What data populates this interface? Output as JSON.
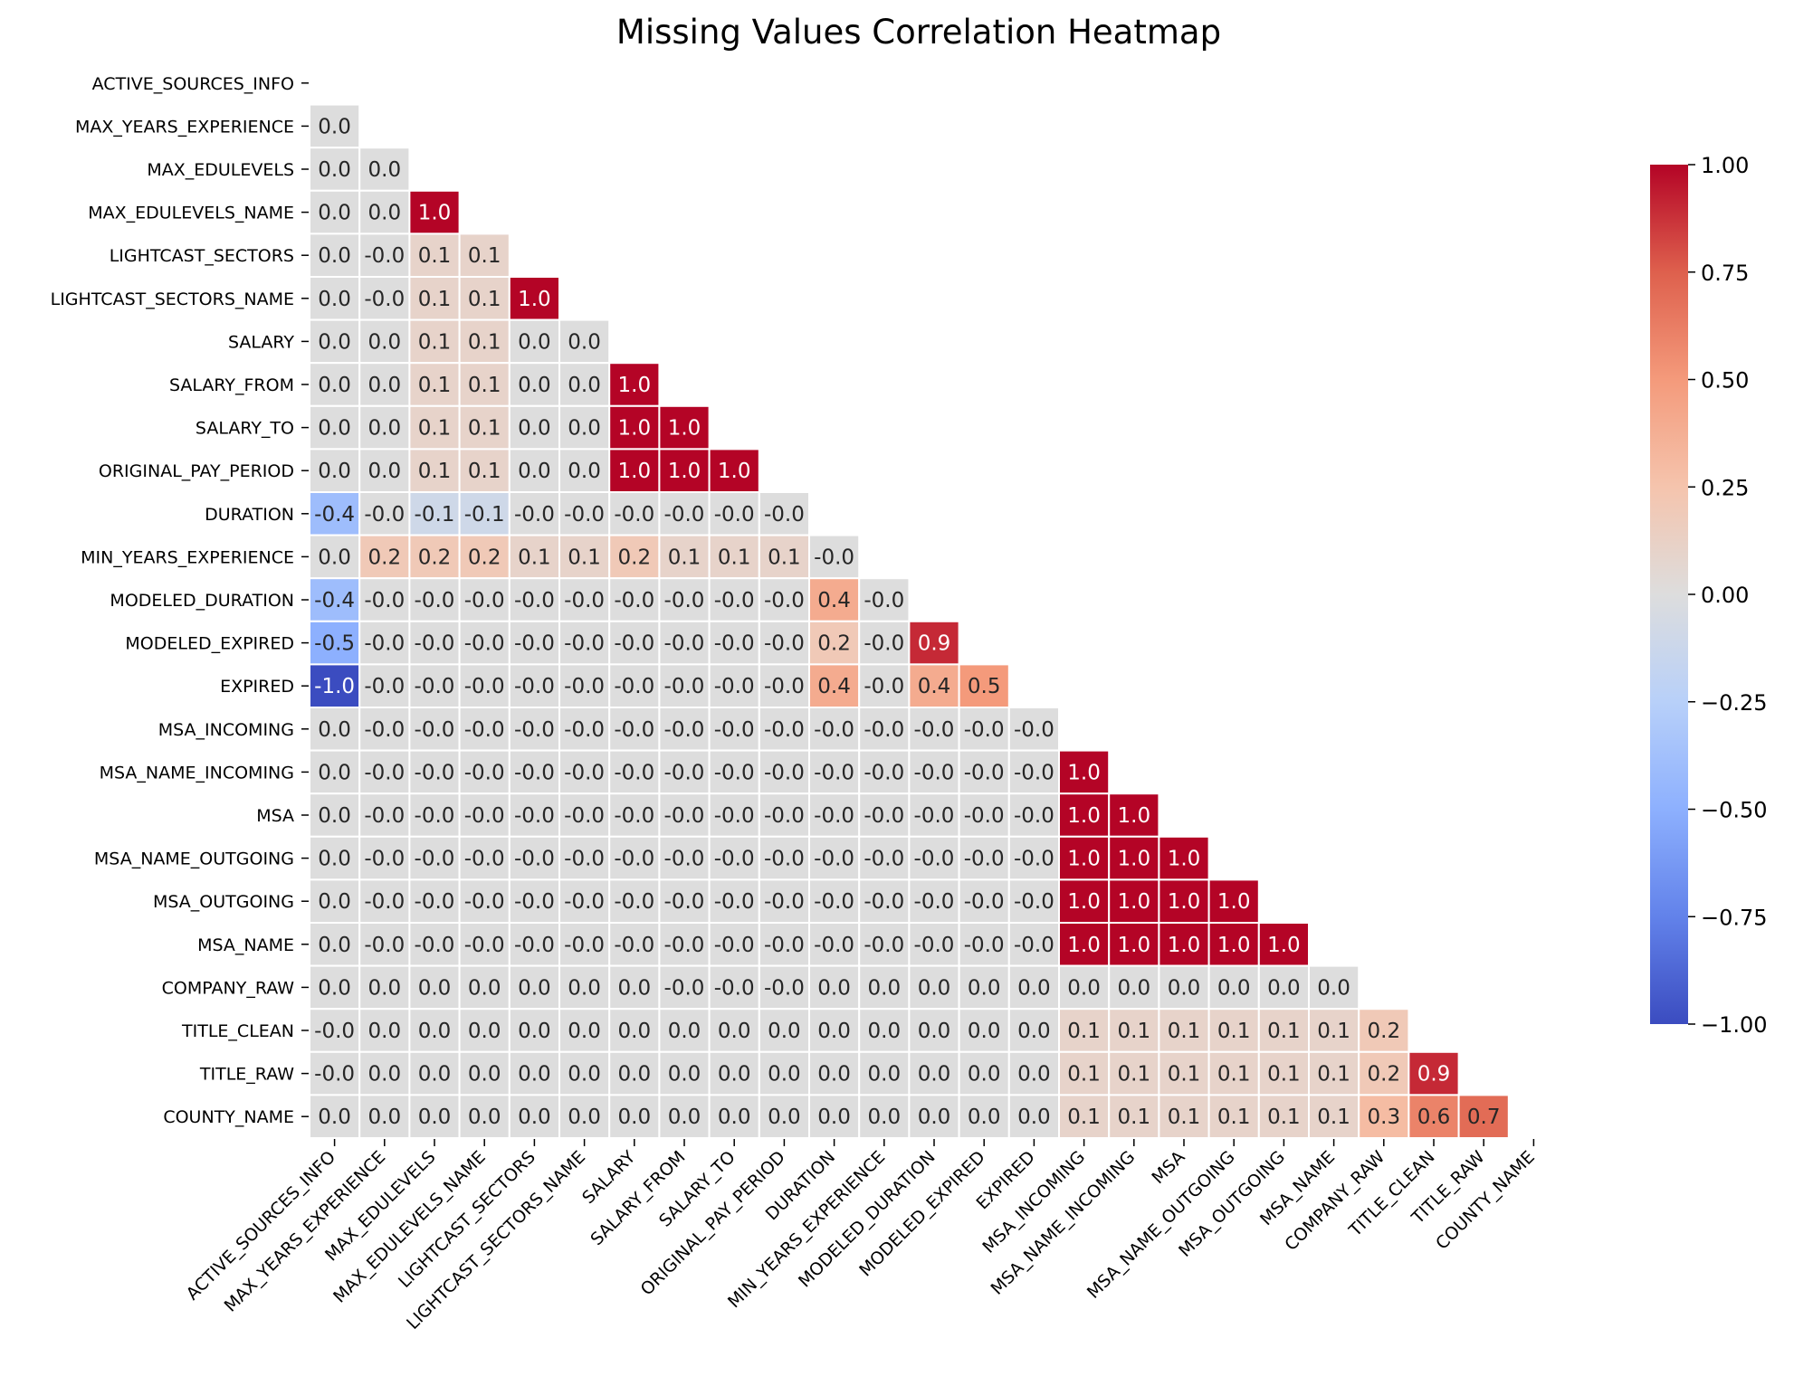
{
  "chart_data": {
    "type": "heatmap",
    "title": "Missing Values Correlation Heatmap",
    "xlabel": "",
    "ylabel": "",
    "mask": "upper-triangle-including-diagonal",
    "colormap": "coolwarm",
    "value_range": [
      -1.0,
      1.0
    ],
    "grid_lines": "white",
    "labels": [
      "ACTIVE_SOURCES_INFO",
      "MAX_YEARS_EXPERIENCE",
      "MAX_EDULEVELS",
      "MAX_EDULEVELS_NAME",
      "LIGHTCAST_SECTORS",
      "LIGHTCAST_SECTORS_NAME",
      "SALARY",
      "SALARY_FROM",
      "SALARY_TO",
      "ORIGINAL_PAY_PERIOD",
      "DURATION",
      "MIN_YEARS_EXPERIENCE",
      "MODELED_DURATION",
      "MODELED_EXPIRED",
      "EXPIRED",
      "MSA_INCOMING",
      "MSA_NAME_INCOMING",
      "MSA",
      "MSA_NAME_OUTGOING",
      "MSA_OUTGOING",
      "MSA_NAME",
      "COMPANY_RAW",
      "TITLE_CLEAN",
      "TITLE_RAW",
      "COUNTY_NAME"
    ],
    "rows": [
      [],
      [
        "0.0"
      ],
      [
        "0.0",
        "0.0"
      ],
      [
        "0.0",
        "0.0",
        "1.0"
      ],
      [
        "0.0",
        "-0.0",
        "0.1",
        "0.1"
      ],
      [
        "0.0",
        "-0.0",
        "0.1",
        "0.1",
        "1.0"
      ],
      [
        "0.0",
        "0.0",
        "0.1",
        "0.1",
        "0.0",
        "0.0"
      ],
      [
        "0.0",
        "0.0",
        "0.1",
        "0.1",
        "0.0",
        "0.0",
        "1.0"
      ],
      [
        "0.0",
        "0.0",
        "0.1",
        "0.1",
        "0.0",
        "0.0",
        "1.0",
        "1.0"
      ],
      [
        "0.0",
        "0.0",
        "0.1",
        "0.1",
        "0.0",
        "0.0",
        "1.0",
        "1.0",
        "1.0"
      ],
      [
        "-0.4",
        "-0.0",
        "-0.1",
        "-0.1",
        "-0.0",
        "-0.0",
        "-0.0",
        "-0.0",
        "-0.0",
        "-0.0"
      ],
      [
        "0.0",
        "0.2",
        "0.2",
        "0.2",
        "0.1",
        "0.1",
        "0.2",
        "0.1",
        "0.1",
        "0.1",
        "-0.0"
      ],
      [
        "-0.4",
        "-0.0",
        "-0.0",
        "-0.0",
        "-0.0",
        "-0.0",
        "-0.0",
        "-0.0",
        "-0.0",
        "-0.0",
        "0.4",
        "-0.0"
      ],
      [
        "-0.5",
        "-0.0",
        "-0.0",
        "-0.0",
        "-0.0",
        "-0.0",
        "-0.0",
        "-0.0",
        "-0.0",
        "-0.0",
        "0.2",
        "-0.0",
        "0.9"
      ],
      [
        "-1.0",
        "-0.0",
        "-0.0",
        "-0.0",
        "-0.0",
        "-0.0",
        "-0.0",
        "-0.0",
        "-0.0",
        "-0.0",
        "0.4",
        "-0.0",
        "0.4",
        "0.5"
      ],
      [
        "0.0",
        "-0.0",
        "-0.0",
        "-0.0",
        "-0.0",
        "-0.0",
        "-0.0",
        "-0.0",
        "-0.0",
        "-0.0",
        "-0.0",
        "-0.0",
        "-0.0",
        "-0.0",
        "-0.0"
      ],
      [
        "0.0",
        "-0.0",
        "-0.0",
        "-0.0",
        "-0.0",
        "-0.0",
        "-0.0",
        "-0.0",
        "-0.0",
        "-0.0",
        "-0.0",
        "-0.0",
        "-0.0",
        "-0.0",
        "-0.0",
        "1.0"
      ],
      [
        "0.0",
        "-0.0",
        "-0.0",
        "-0.0",
        "-0.0",
        "-0.0",
        "-0.0",
        "-0.0",
        "-0.0",
        "-0.0",
        "-0.0",
        "-0.0",
        "-0.0",
        "-0.0",
        "-0.0",
        "1.0",
        "1.0"
      ],
      [
        "0.0",
        "-0.0",
        "-0.0",
        "-0.0",
        "-0.0",
        "-0.0",
        "-0.0",
        "-0.0",
        "-0.0",
        "-0.0",
        "-0.0",
        "-0.0",
        "-0.0",
        "-0.0",
        "-0.0",
        "1.0",
        "1.0",
        "1.0"
      ],
      [
        "0.0",
        "-0.0",
        "-0.0",
        "-0.0",
        "-0.0",
        "-0.0",
        "-0.0",
        "-0.0",
        "-0.0",
        "-0.0",
        "-0.0",
        "-0.0",
        "-0.0",
        "-0.0",
        "-0.0",
        "1.0",
        "1.0",
        "1.0",
        "1.0"
      ],
      [
        "0.0",
        "-0.0",
        "-0.0",
        "-0.0",
        "-0.0",
        "-0.0",
        "-0.0",
        "-0.0",
        "-0.0",
        "-0.0",
        "-0.0",
        "-0.0",
        "-0.0",
        "-0.0",
        "-0.0",
        "1.0",
        "1.0",
        "1.0",
        "1.0",
        "1.0"
      ],
      [
        "0.0",
        "0.0",
        "0.0",
        "0.0",
        "0.0",
        "0.0",
        "0.0",
        "-0.0",
        "-0.0",
        "-0.0",
        "0.0",
        "0.0",
        "0.0",
        "0.0",
        "0.0",
        "0.0",
        "0.0",
        "0.0",
        "0.0",
        "0.0",
        "0.0"
      ],
      [
        "-0.0",
        "0.0",
        "0.0",
        "0.0",
        "0.0",
        "0.0",
        "0.0",
        "0.0",
        "0.0",
        "0.0",
        "0.0",
        "0.0",
        "0.0",
        "0.0",
        "0.0",
        "0.1",
        "0.1",
        "0.1",
        "0.1",
        "0.1",
        "0.1",
        "0.2"
      ],
      [
        "-0.0",
        "0.0",
        "0.0",
        "0.0",
        "0.0",
        "0.0",
        "0.0",
        "0.0",
        "0.0",
        "0.0",
        "0.0",
        "0.0",
        "0.0",
        "0.0",
        "0.0",
        "0.1",
        "0.1",
        "0.1",
        "0.1",
        "0.1",
        "0.1",
        "0.2",
        "0.9"
      ],
      [
        "0.0",
        "0.0",
        "0.0",
        "0.0",
        "0.0",
        "0.0",
        "0.0",
        "0.0",
        "0.0",
        "0.0",
        "0.0",
        "0.0",
        "0.0",
        "0.0",
        "0.0",
        "0.1",
        "0.1",
        "0.1",
        "0.1",
        "0.1",
        "0.1",
        "0.3",
        "0.6",
        "0.7"
      ]
    ],
    "colorbar": {
      "ticks": [
        "1.00",
        "0.75",
        "0.50",
        "0.25",
        "0.00",
        "−0.25",
        "−0.50",
        "−0.75",
        "−1.00"
      ],
      "tick_values": [
        1.0,
        0.75,
        0.5,
        0.25,
        0.0,
        -0.25,
        -0.5,
        -0.75,
        -1.0
      ]
    }
  }
}
